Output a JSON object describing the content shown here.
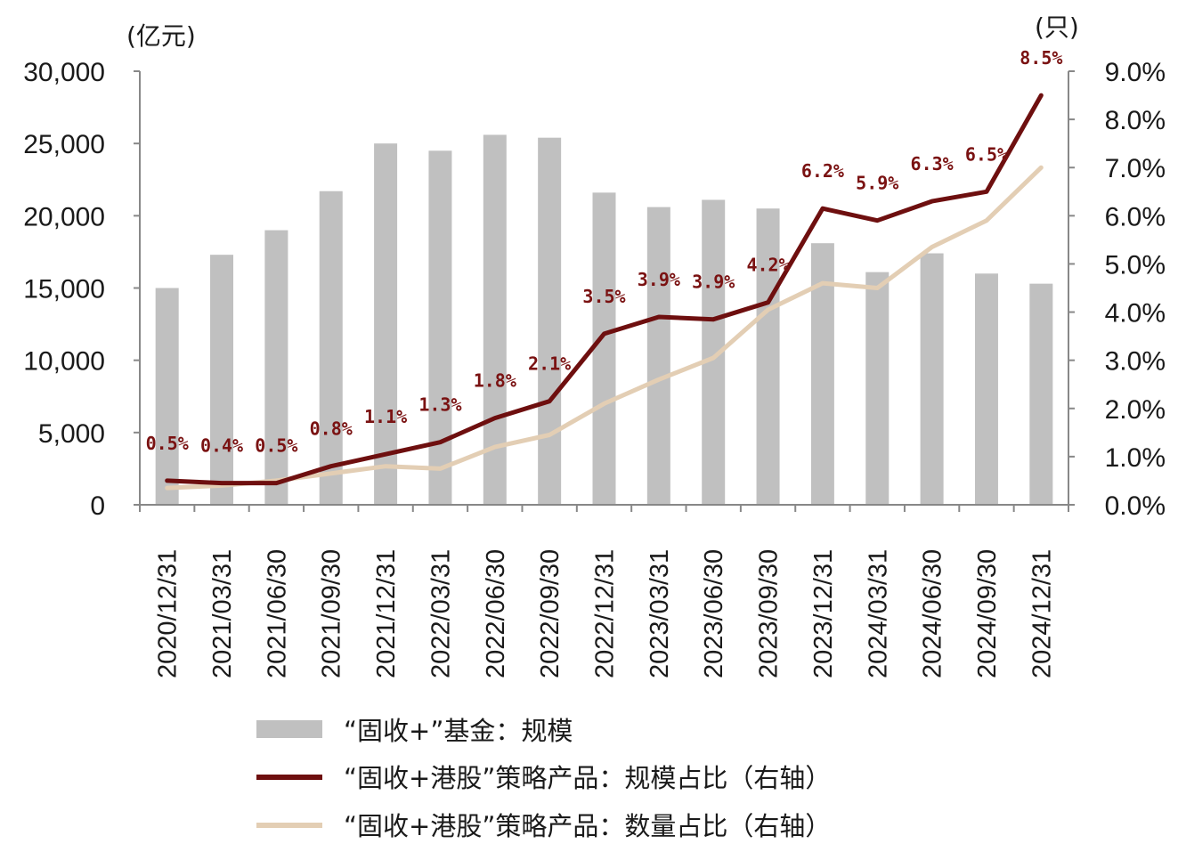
{
  "chart_data": {
    "type": "bar",
    "categories": [
      "2020/12/31",
      "2021/03/31",
      "2021/06/30",
      "2021/09/30",
      "2021/12/31",
      "2022/03/31",
      "2022/06/30",
      "2022/09/30",
      "2022/12/31",
      "2023/03/31",
      "2023/06/30",
      "2023/09/30",
      "2023/12/31",
      "2024/03/31",
      "2024/06/30",
      "2024/09/30",
      "2024/12/31"
    ],
    "left_axis": {
      "unit": "(亿元)",
      "ylim": [
        0,
        30000
      ],
      "ticks": [
        "0",
        "5,000",
        "10,000",
        "15,000",
        "20,000",
        "25,000",
        "30,000"
      ]
    },
    "right_axis": {
      "unit": "(只)",
      "ylim": [
        0,
        9
      ],
      "ticks": [
        "0.0%",
        "1.0%",
        "2.0%",
        "3.0%",
        "4.0%",
        "5.0%",
        "6.0%",
        "7.0%",
        "8.0%",
        "9.0%"
      ]
    },
    "series": [
      {
        "name": "“固收+”基金：规模",
        "type": "bar",
        "axis": "left",
        "color": "#c0c0c0",
        "values": [
          15000,
          17300,
          19000,
          21700,
          25000,
          24500,
          25600,
          25400,
          21600,
          20600,
          21100,
          20500,
          18100,
          16100,
          17400,
          16000,
          15300
        ]
      },
      {
        "name": "“固收+港股”策略产品：规模占比（右轴）",
        "type": "line",
        "axis": "right",
        "color": "#6e0f0f",
        "values": [
          0.5,
          0.45,
          0.45,
          0.8,
          1.05,
          1.3,
          1.8,
          2.15,
          3.55,
          3.9,
          3.85,
          4.2,
          6.15,
          5.9,
          6.3,
          6.5,
          8.5
        ],
        "labels": [
          "0.5%",
          "0.4%",
          "0.5%",
          "0.8%",
          "1.1%",
          "1.3%",
          "1.8%",
          "2.1%",
          "3.5%",
          "3.9%",
          "3.9%",
          "4.2%",
          "6.2%",
          "5.9%",
          "6.3%",
          "6.5%",
          "8.5%"
        ]
      },
      {
        "name": "“固收+港股”策略产品：数量占比（右轴）",
        "type": "line",
        "axis": "right",
        "color": "#e3ceb4",
        "values": [
          0.35,
          0.4,
          0.5,
          0.65,
          0.8,
          0.75,
          1.2,
          1.45,
          2.1,
          2.6,
          3.05,
          4.05,
          4.6,
          4.5,
          5.35,
          5.9,
          7.0
        ]
      }
    ]
  }
}
